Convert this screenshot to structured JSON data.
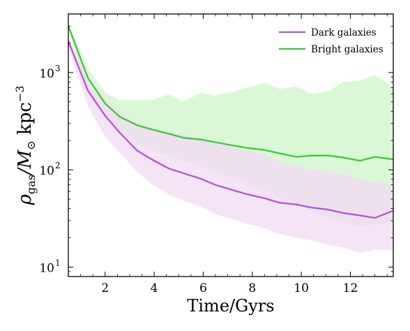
{
  "chart_data": {
    "type": "line",
    "title": "",
    "xlabel": "Time/Gyrs",
    "ylabel": {
      "rho": "ρ",
      "rho_sub": "gas",
      "slash_m": "/M",
      "sun": "⊙",
      "unit": " kpc",
      "unit_sup": "−3"
    },
    "xlim": [
      0.5,
      13.75
    ],
    "ylim": [
      8,
      4000
    ],
    "yscale": "log",
    "xticks": [
      2,
      4,
      6,
      8,
      10,
      12
    ],
    "xtick_labels": [
      "2",
      "4",
      "6",
      "8",
      "10",
      "12"
    ],
    "yticks": [
      {
        "value": 10,
        "base": "10",
        "exp": "1"
      },
      {
        "value": 100,
        "base": "10",
        "exp": "2"
      },
      {
        "value": 1000,
        "base": "10",
        "exp": "3"
      }
    ],
    "legend_position": "top-right",
    "x": [
      0.5,
      1.3,
      2.0,
      2.6,
      3.3,
      3.9,
      4.6,
      5.2,
      5.9,
      6.5,
      7.2,
      7.8,
      8.5,
      9.1,
      9.8,
      10.4,
      11.1,
      11.7,
      12.4,
      13.0,
      13.75
    ],
    "series": [
      {
        "name": "Dark galaxies",
        "color": "#b455d6",
        "fill": "#f1d9f3",
        "values": [
          2100,
          650,
          360,
          240,
          158,
          128,
          103,
          92,
          81,
          70,
          62,
          56,
          51,
          46,
          44,
          41,
          39,
          36,
          34,
          32,
          38
        ],
        "upper": [
          2300,
          900,
          530,
          390,
          300,
          270,
          240,
          230,
          210,
          185,
          170,
          155,
          145,
          120,
          110,
          100,
          95,
          90,
          80,
          75,
          70
        ],
        "lower": [
          1800,
          450,
          220,
          150,
          95,
          72,
          56,
          48,
          42,
          35,
          31,
          28,
          25,
          22,
          20,
          19,
          17,
          16,
          14,
          15,
          15
        ]
      },
      {
        "name": "Bright galaxies",
        "color": "#3ec93b",
        "fill": "#d6f7d2",
        "values": [
          3000,
          880,
          480,
          350,
          288,
          260,
          235,
          213,
          205,
          192,
          178,
          168,
          160,
          148,
          136,
          140,
          140,
          134,
          124,
          136,
          128
        ],
        "upper": [
          3200,
          1100,
          620,
          520,
          520,
          520,
          600,
          500,
          620,
          580,
          630,
          700,
          780,
          680,
          720,
          600,
          640,
          800,
          820,
          950,
          700
        ],
        "lower": [
          2800,
          620,
          330,
          250,
          190,
          160,
          140,
          125,
          110,
          95,
          83,
          72,
          62,
          52,
          44,
          38,
          33,
          29,
          26,
          28,
          28
        ]
      }
    ]
  }
}
